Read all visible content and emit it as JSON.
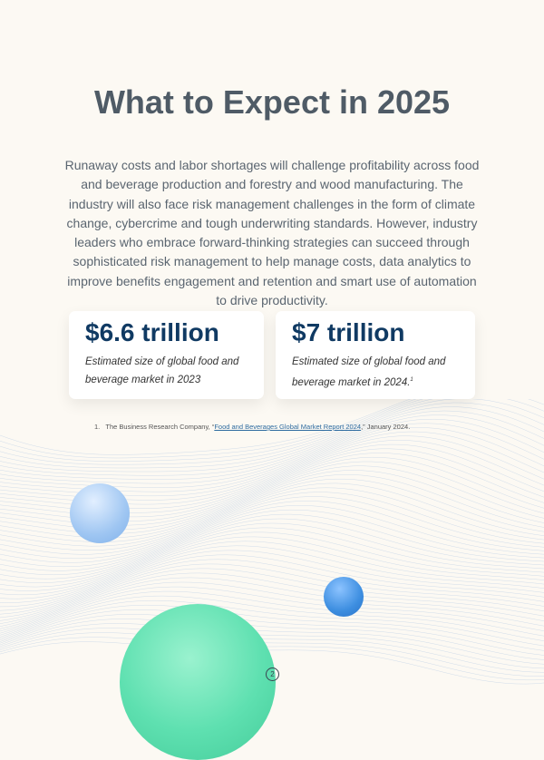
{
  "title": "What to Expect in 2025",
  "body": "Runaway costs and labor shortages will challenge profitability across food and beverage production and forestry and wood manufacturing. The industry will also face risk management challenges in the form of climate change, cybercrime and tough underwriting standards. However, industry leaders who embrace forward-thinking strategies can succeed through sophisticated risk management to help manage costs, data analytics to improve benefits engagement and retention and smart use of automation to drive productivity.",
  "stats": [
    {
      "value": "$6.6 trillion",
      "caption": "Estimated size of global food and beverage market in 2023",
      "note": ""
    },
    {
      "value": "$7 trillion",
      "caption": "Estimated size of global food and beverage market in 2024.",
      "note": "1"
    }
  ],
  "footnote": {
    "number": "1.",
    "prefix": "The Business Research Company, “",
    "link": "Food and Beverages Global Market Report 2024",
    "suffix": ",” January 2024."
  },
  "page_number": "2",
  "colors": {
    "background": "#fcf9f3",
    "title": "#4f5b66",
    "stat": "#103a63",
    "accent_green": "#5ee0b0",
    "accent_blue": "#3d8ee0"
  }
}
